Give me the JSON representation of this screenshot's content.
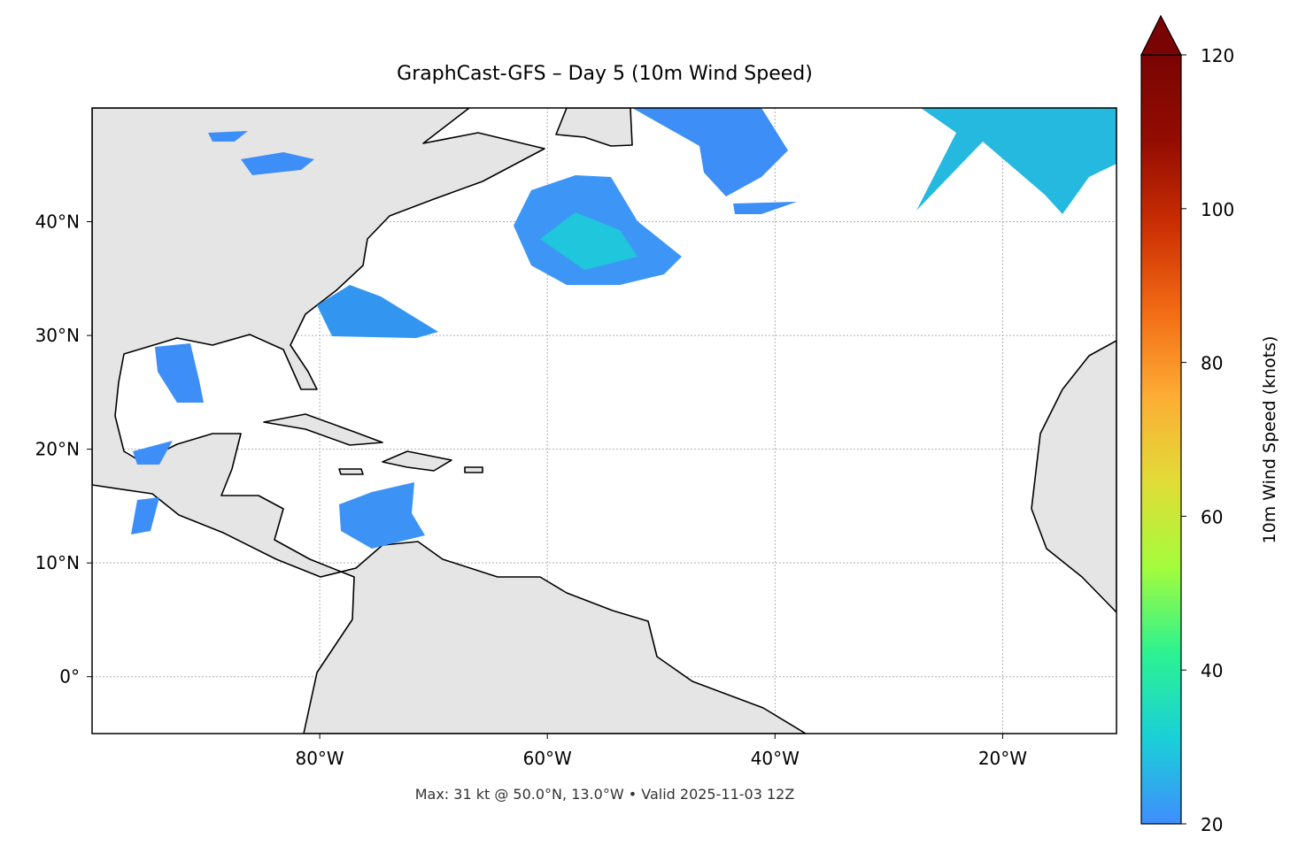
{
  "chart_data": {
    "type": "map",
    "title": "GraphCast-GFS – Day 5 (10m Wind Speed)",
    "footnote": "Max: 31 kt @ 50.0°N, 13.0°W • Valid 2025-11-03 12Z",
    "xlim": [
      -100,
      -10
    ],
    "ylim": [
      -5,
      50
    ],
    "xticks": [
      {
        "value": -80,
        "label": "80°W"
      },
      {
        "value": -60,
        "label": "60°W"
      },
      {
        "value": -40,
        "label": "40°W"
      },
      {
        "value": -20,
        "label": "20°W"
      }
    ],
    "yticks": [
      {
        "value": 0,
        "label": "0°"
      },
      {
        "value": 10,
        "label": "10°N"
      },
      {
        "value": 20,
        "label": "20°N"
      },
      {
        "value": 30,
        "label": "30°N"
      },
      {
        "value": 40,
        "label": "40°N"
      }
    ],
    "grid": true,
    "colorbar": {
      "label": "10m Wind Speed (knots)",
      "lim": [
        20,
        120
      ],
      "ticks": [
        20,
        40,
        60,
        80,
        100,
        120
      ],
      "colors": [
        "#3f8efc",
        "#1ad0d8",
        "#2cf291",
        "#a4fc3c",
        "#e1dc37",
        "#fdad35",
        "#f26b14",
        "#cb2f04",
        "#930c01",
        "#7a0403"
      ]
    }
  }
}
